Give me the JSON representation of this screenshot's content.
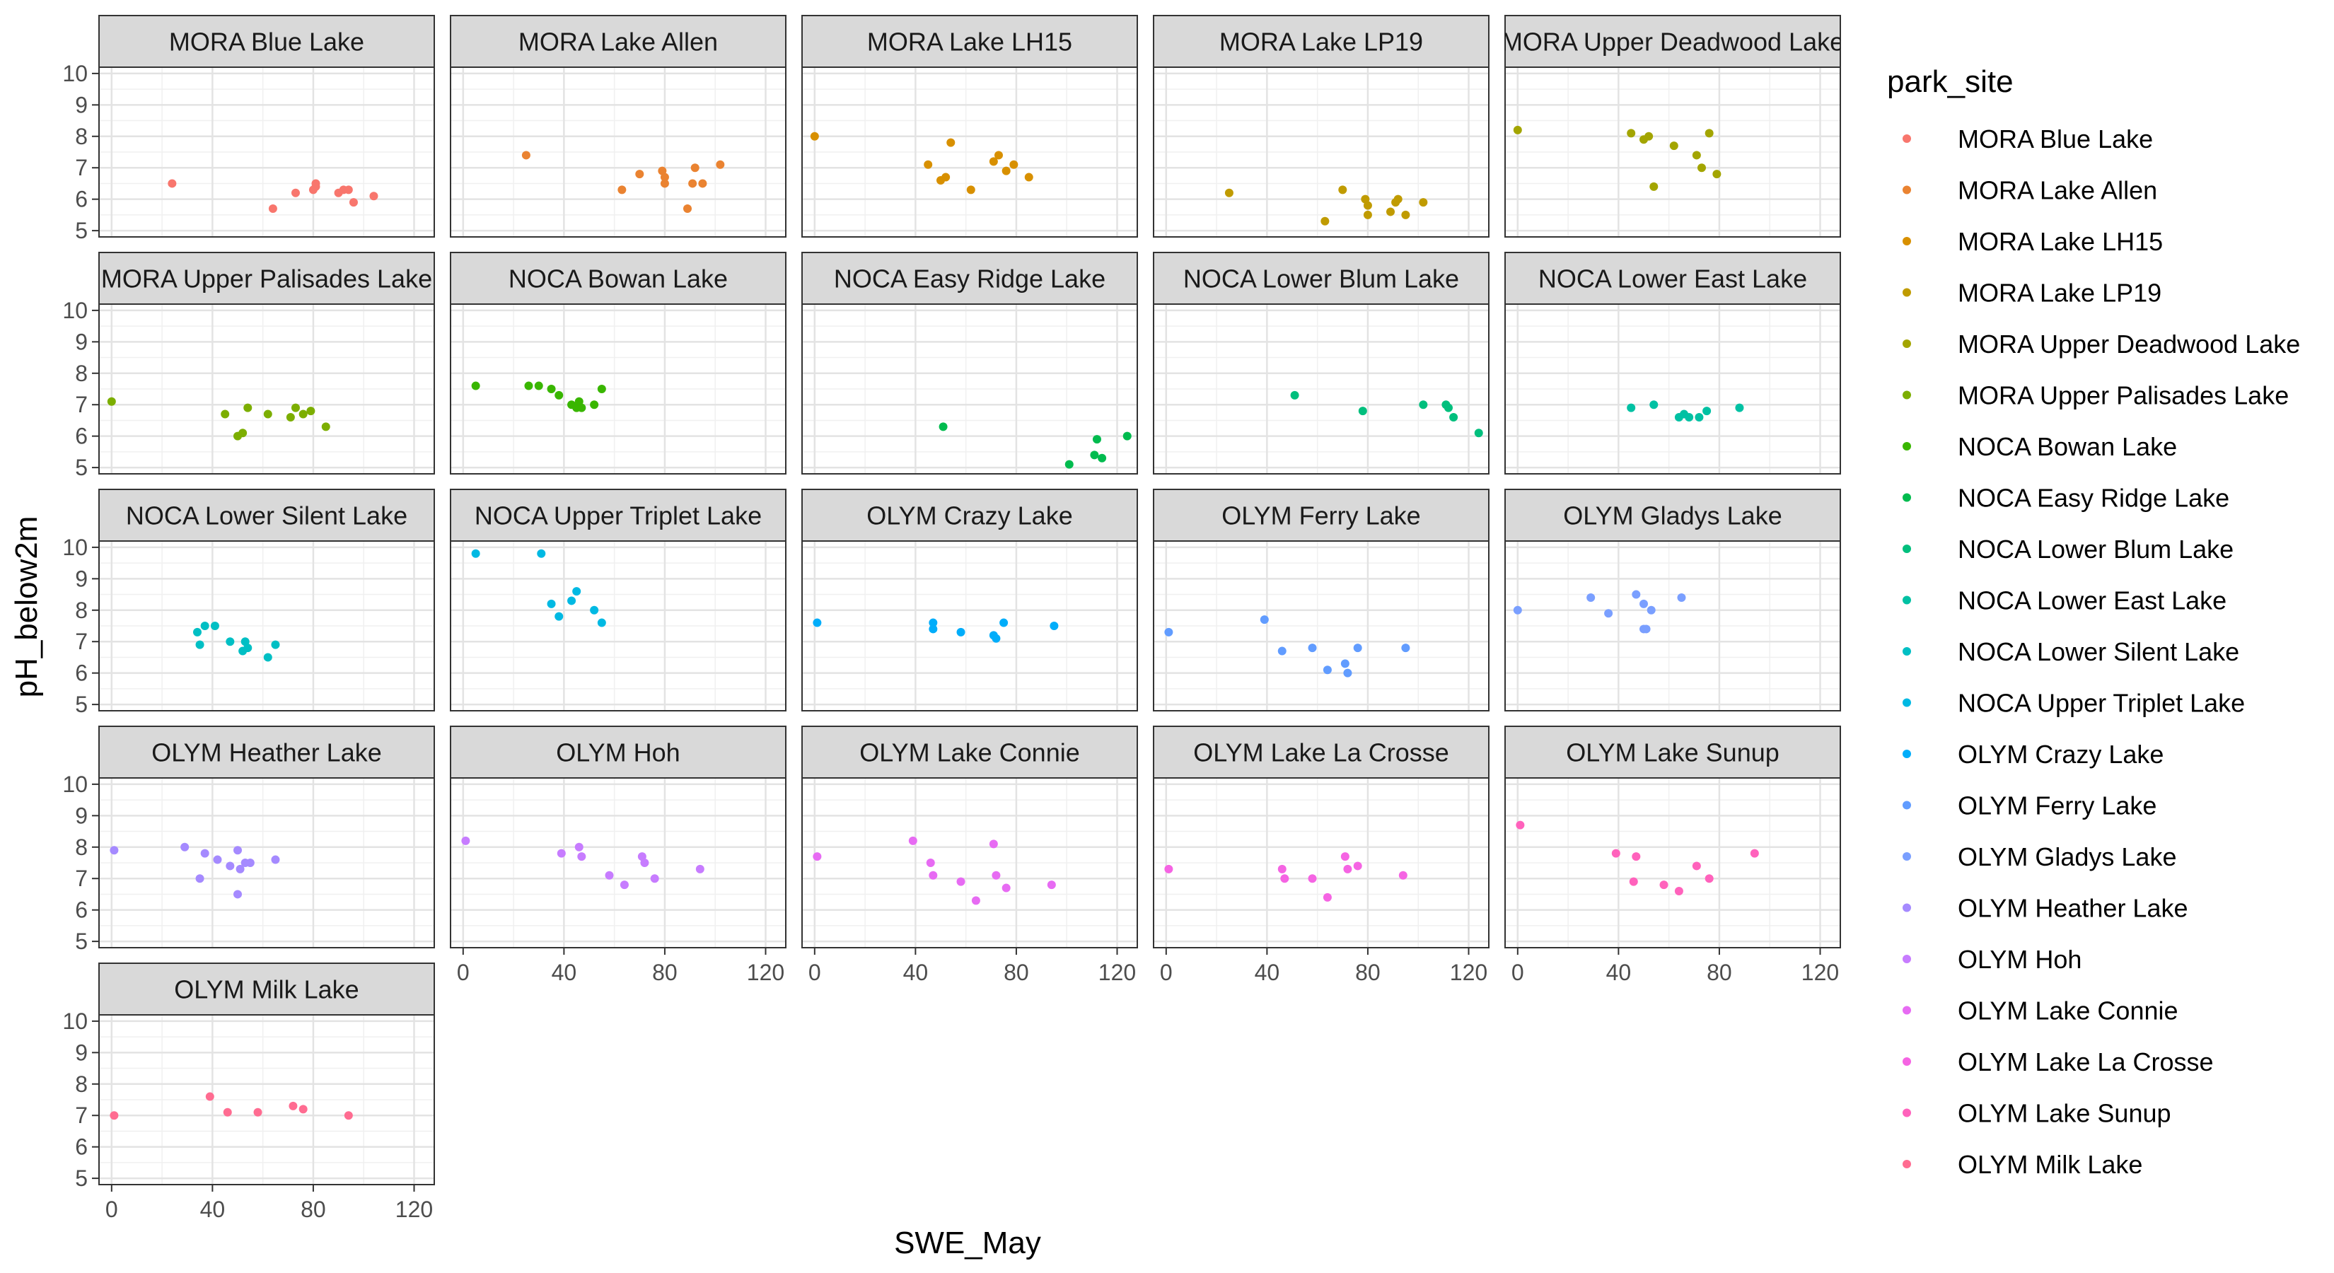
{
  "chart_data": {
    "type": "scatter",
    "facet_by": "park_site",
    "xlabel": "SWE_May",
    "ylabel": "pH_below2m",
    "xlim": [
      -5,
      128
    ],
    "ylim": [
      4.8,
      10.2
    ],
    "x_ticks": [
      0,
      40,
      80,
      120
    ],
    "y_ticks": [
      5,
      6,
      7,
      8,
      9,
      10
    ],
    "grid": true,
    "legend": {
      "title": "park_site",
      "position": "right"
    },
    "panels": [
      {
        "name": "MORA Blue Lake",
        "color": "#F8766D",
        "points": [
          [
            24,
            6.5
          ],
          [
            64,
            5.7
          ],
          [
            73,
            6.2
          ],
          [
            80,
            6.3
          ],
          [
            81,
            6.4
          ],
          [
            81,
            6.5
          ],
          [
            90,
            6.2
          ],
          [
            92,
            6.3
          ],
          [
            94,
            6.3
          ],
          [
            96,
            5.9
          ],
          [
            104,
            6.1
          ]
        ]
      },
      {
        "name": "MORA Lake Allen",
        "color": "#EA8331",
        "points": [
          [
            25,
            7.4
          ],
          [
            63,
            6.3
          ],
          [
            70,
            6.8
          ],
          [
            79,
            6.9
          ],
          [
            80,
            6.7
          ],
          [
            80,
            6.5
          ],
          [
            89,
            5.7
          ],
          [
            91,
            6.5
          ],
          [
            92,
            7.0
          ],
          [
            95,
            6.5
          ],
          [
            102,
            7.1
          ]
        ]
      },
      {
        "name": "MORA Lake LH15",
        "color": "#D89000",
        "points": [
          [
            0,
            8.0
          ],
          [
            45,
            7.1
          ],
          [
            50,
            6.6
          ],
          [
            52,
            6.7
          ],
          [
            54,
            7.8
          ],
          [
            62,
            6.3
          ],
          [
            71,
            7.2
          ],
          [
            73,
            7.4
          ],
          [
            76,
            6.9
          ],
          [
            79,
            7.1
          ],
          [
            85,
            6.7
          ]
        ]
      },
      {
        "name": "MORA Lake LP19",
        "color": "#C09B00",
        "points": [
          [
            25,
            6.2
          ],
          [
            63,
            5.3
          ],
          [
            70,
            6.3
          ],
          [
            79,
            6.0
          ],
          [
            80,
            5.8
          ],
          [
            80,
            5.5
          ],
          [
            89,
            5.6
          ],
          [
            91,
            5.9
          ],
          [
            92,
            6.0
          ],
          [
            95,
            5.5
          ],
          [
            102,
            5.9
          ]
        ]
      },
      {
        "name": "MORA Upper Deadwood Lake",
        "color": "#A3A500",
        "points": [
          [
            0,
            8.2
          ],
          [
            45,
            8.1
          ],
          [
            50,
            7.9
          ],
          [
            52,
            8.0
          ],
          [
            54,
            6.4
          ],
          [
            62,
            7.7
          ],
          [
            71,
            7.4
          ],
          [
            73,
            7.0
          ],
          [
            76,
            8.1
          ],
          [
            79,
            6.8
          ]
        ]
      },
      {
        "name": "MORA Upper Palisades Lake",
        "color": "#7CAE00",
        "points": [
          [
            0,
            7.1
          ],
          [
            45,
            6.7
          ],
          [
            50,
            6.0
          ],
          [
            52,
            6.1
          ],
          [
            54,
            6.9
          ],
          [
            62,
            6.7
          ],
          [
            71,
            6.6
          ],
          [
            73,
            6.9
          ],
          [
            76,
            6.7
          ],
          [
            79,
            6.8
          ],
          [
            85,
            6.3
          ]
        ]
      },
      {
        "name": "NOCA Bowan Lake",
        "color": "#39B600",
        "points": [
          [
            5,
            7.6
          ],
          [
            26,
            7.6
          ],
          [
            30,
            7.6
          ],
          [
            35,
            7.5
          ],
          [
            38,
            7.3
          ],
          [
            43,
            7.0
          ],
          [
            45,
            6.9
          ],
          [
            46,
            7.1
          ],
          [
            47,
            6.9
          ],
          [
            52,
            7.0
          ],
          [
            55,
            7.5
          ]
        ]
      },
      {
        "name": "NOCA Easy Ridge Lake",
        "color": "#00BB4E",
        "points": [
          [
            51,
            6.3
          ],
          [
            101,
            5.1
          ],
          [
            111,
            5.4
          ],
          [
            112,
            5.9
          ],
          [
            114,
            5.3
          ],
          [
            124,
            6.0
          ]
        ]
      },
      {
        "name": "NOCA Lower Blum Lake",
        "color": "#00BF7D",
        "points": [
          [
            51,
            7.3
          ],
          [
            78,
            6.8
          ],
          [
            102,
            7.0
          ],
          [
            111,
            7.0
          ],
          [
            112,
            6.9
          ],
          [
            114,
            6.6
          ],
          [
            124,
            6.1
          ]
        ]
      },
      {
        "name": "NOCA Lower East Lake",
        "color": "#00C1A3",
        "points": [
          [
            45,
            6.9
          ],
          [
            54,
            7.0
          ],
          [
            64,
            6.6
          ],
          [
            66,
            6.7
          ],
          [
            68,
            6.6
          ],
          [
            72,
            6.6
          ],
          [
            75,
            6.8
          ],
          [
            88,
            6.9
          ]
        ]
      },
      {
        "name": "NOCA Lower Silent Lake",
        "color": "#00BFC4",
        "points": [
          [
            34,
            7.3
          ],
          [
            35,
            6.9
          ],
          [
            37,
            7.5
          ],
          [
            41,
            7.5
          ],
          [
            47,
            7.0
          ],
          [
            52,
            6.7
          ],
          [
            53,
            7.0
          ],
          [
            54,
            6.8
          ],
          [
            62,
            6.5
          ],
          [
            65,
            6.9
          ]
        ]
      },
      {
        "name": "NOCA Upper Triplet Lake",
        "color": "#00B9E3",
        "points": [
          [
            5,
            9.8
          ],
          [
            31,
            9.8
          ],
          [
            35,
            8.2
          ],
          [
            38,
            7.8
          ],
          [
            43,
            8.3
          ],
          [
            45,
            8.6
          ],
          [
            52,
            8.0
          ],
          [
            55,
            7.6
          ]
        ]
      },
      {
        "name": "OLYM Crazy Lake",
        "color": "#00ADFA",
        "points": [
          [
            1,
            7.6
          ],
          [
            47,
            7.6
          ],
          [
            47,
            7.4
          ],
          [
            58,
            7.3
          ],
          [
            71,
            7.2
          ],
          [
            72,
            7.1
          ],
          [
            75,
            7.6
          ],
          [
            95,
            7.5
          ]
        ]
      },
      {
        "name": "OLYM Ferry Lake",
        "color": "#619CFF",
        "points": [
          [
            1,
            7.3
          ],
          [
            39,
            7.7
          ],
          [
            46,
            6.7
          ],
          [
            58,
            6.8
          ],
          [
            64,
            6.1
          ],
          [
            71,
            6.3
          ],
          [
            72,
            6.0
          ],
          [
            76,
            6.8
          ],
          [
            95,
            6.8
          ]
        ]
      },
      {
        "name": "OLYM Gladys Lake",
        "color": "#7A9FFF",
        "points": [
          [
            0,
            8.0
          ],
          [
            29,
            8.4
          ],
          [
            36,
            7.9
          ],
          [
            47,
            8.5
          ],
          [
            50,
            8.2
          ],
          [
            50,
            7.4
          ],
          [
            51,
            7.4
          ],
          [
            53,
            8.0
          ],
          [
            65,
            8.4
          ]
        ]
      },
      {
        "name": "OLYM Heather Lake",
        "color": "#A58AFF",
        "points": [
          [
            1,
            7.9
          ],
          [
            29,
            8.0
          ],
          [
            35,
            7.0
          ],
          [
            37,
            7.8
          ],
          [
            42,
            7.6
          ],
          [
            47,
            7.4
          ],
          [
            50,
            6.5
          ],
          [
            50,
            7.9
          ],
          [
            51,
            7.3
          ],
          [
            53,
            7.5
          ],
          [
            55,
            7.5
          ],
          [
            65,
            7.6
          ]
        ]
      },
      {
        "name": "OLYM Hoh",
        "color": "#C77CFF",
        "points": [
          [
            1,
            8.2
          ],
          [
            39,
            7.8
          ],
          [
            46,
            8.0
          ],
          [
            47,
            7.7
          ],
          [
            58,
            7.1
          ],
          [
            64,
            6.8
          ],
          [
            71,
            7.7
          ],
          [
            72,
            7.5
          ],
          [
            76,
            7.0
          ],
          [
            94,
            7.3
          ]
        ]
      },
      {
        "name": "OLYM Lake Connie",
        "color": "#E76BF3",
        "points": [
          [
            1,
            7.7
          ],
          [
            39,
            8.2
          ],
          [
            46,
            7.5
          ],
          [
            47,
            7.1
          ],
          [
            58,
            6.9
          ],
          [
            64,
            6.3
          ],
          [
            71,
            8.1
          ],
          [
            72,
            7.1
          ],
          [
            76,
            6.7
          ],
          [
            94,
            6.8
          ]
        ]
      },
      {
        "name": "OLYM Lake La Crosse",
        "color": "#F564E3",
        "points": [
          [
            1,
            7.3
          ],
          [
            46,
            7.3
          ],
          [
            47,
            7.0
          ],
          [
            58,
            7.0
          ],
          [
            64,
            6.4
          ],
          [
            71,
            7.7
          ],
          [
            72,
            7.3
          ],
          [
            76,
            7.4
          ],
          [
            94,
            7.1
          ]
        ]
      },
      {
        "name": "OLYM Lake Sunup",
        "color": "#FF62BC",
        "points": [
          [
            1,
            8.7
          ],
          [
            39,
            7.8
          ],
          [
            46,
            6.9
          ],
          [
            47,
            7.7
          ],
          [
            58,
            6.8
          ],
          [
            64,
            6.6
          ],
          [
            71,
            7.4
          ],
          [
            76,
            7.0
          ],
          [
            94,
            7.8
          ]
        ]
      },
      {
        "name": "OLYM Milk Lake",
        "color": "#FF6C91",
        "points": [
          [
            1,
            7.0
          ],
          [
            39,
            7.6
          ],
          [
            46,
            7.1
          ],
          [
            58,
            7.1
          ],
          [
            72,
            7.3
          ],
          [
            76,
            7.2
          ],
          [
            94,
            7.0
          ]
        ]
      }
    ]
  }
}
